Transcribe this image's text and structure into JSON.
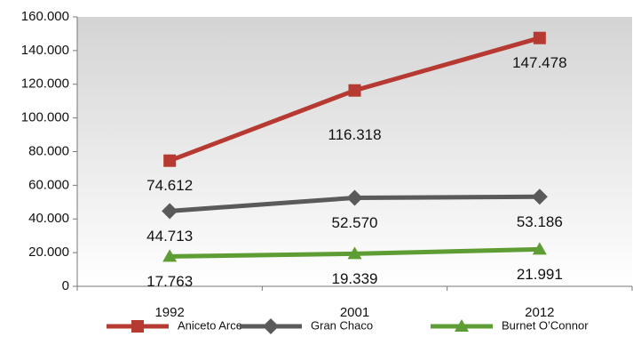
{
  "chart_data": {
    "type": "line",
    "categories": [
      "1992",
      "2001",
      "2012"
    ],
    "series": [
      {
        "name": "Aniceto Arce",
        "color": "#b73a32",
        "marker": "square",
        "values": [
          74612,
          116318,
          147478
        ],
        "value_labels": [
          "74.612",
          "116.318",
          "147.478"
        ]
      },
      {
        "name": "Gran Chaco",
        "color": "#5a5a5a",
        "marker": "diamond",
        "values": [
          44713,
          52570,
          53186
        ],
        "value_labels": [
          "44.713",
          "52.570",
          "53.186"
        ]
      },
      {
        "name": "Burnet O’Connor",
        "color": "#5e9c34",
        "marker": "triangle",
        "values": [
          17763,
          19339,
          21991
        ],
        "value_labels": [
          "17.763",
          "19.339",
          "21.991"
        ]
      }
    ],
    "ylim": [
      0,
      160000
    ],
    "yticks": [
      0,
      {
        "value": 20000,
        "label": "20.000"
      },
      {
        "value": 40000,
        "label": "40.000"
      },
      {
        "value": 60000,
        "label": "60.000"
      },
      {
        "value": 80000,
        "label": "80.000"
      },
      {
        "value": 100000,
        "label": "100.000"
      },
      {
        "value": 120000,
        "label": "120.000"
      },
      {
        "value": 140000,
        "label": "140.000"
      },
      {
        "value": 160000,
        "label": "160.000"
      }
    ],
    "legend": "bottom"
  }
}
